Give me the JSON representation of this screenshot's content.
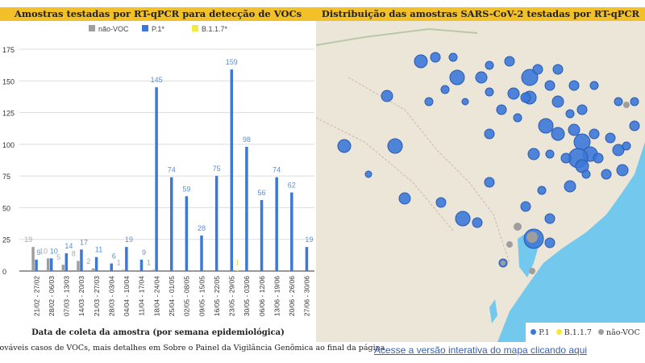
{
  "chart_title": "Amostras testadas por RT-qPCR para detecção de VOCs",
  "map_title": "Distribuição das amostras SARS-CoV-2 testadas por RT-qPCR",
  "note": "rováveis casos de VOCs, mais detalhes em Sobre o Painel da Vigilância Genômica ao final da página",
  "map_link": "Acesse a versão interativa do mapa clicando aqui",
  "map_legend": [
    {
      "label": "P.1",
      "color": "#3c78d8"
    },
    {
      "label": "B.1.1.7",
      "color": "#f4e842"
    },
    {
      "label": "não-VOC",
      "color": "#9e9e9e"
    }
  ],
  "chart_data": {
    "type": "bar",
    "title": "Amostras testadas por RT-qPCR para detecção de VOCs",
    "xlabel": "Data de coleta da amostra (por semana epidemiológica)",
    "ylabel": "",
    "ylim": [
      0,
      175
    ],
    "yticks": [
      0,
      25,
      50,
      75,
      100,
      125,
      150,
      175
    ],
    "grid": true,
    "legend": "top",
    "categories": [
      "21/02 - 27/02",
      "28/02 - 06/03",
      "07/03 - 13/03",
      "14/03 - 20/03",
      "21/03 - 27/03",
      "28/03 - 03/04",
      "04/04 - 10/04",
      "11/04 - 17/04",
      "18/04 - 24/04",
      "25/04 - 01/05",
      "02/05 - 08/05",
      "09/05 - 15/05",
      "16/05 - 22/05",
      "23/05 - 29/05",
      "30/05 - 03/06",
      "06/06 - 12/06",
      "13/06 - 19/06",
      "20/06 - 26/06",
      "27/06 - 30/06"
    ],
    "series": [
      {
        "name": "não-VOC",
        "color": "#9e9e9e",
        "labelColor": "#aaaaaa",
        "values": [
          19,
          10,
          5,
          8,
          2,
          null,
          1,
          null,
          1,
          null,
          null,
          null,
          null,
          null,
          null,
          null,
          null,
          null,
          null
        ]
      },
      {
        "name": "P.1*",
        "color": "#3c78d8",
        "labelColor": "#5b8fd6",
        "values": [
          9,
          10,
          14,
          17,
          11,
          6,
          19,
          9,
          145,
          74,
          59,
          28,
          75,
          159,
          98,
          56,
          74,
          62,
          19
        ]
      },
      {
        "name": "B.1.1.7*",
        "color": "#f4e842",
        "labelColor": "#e8dc50",
        "values": [
          null,
          null,
          null,
          null,
          null,
          null,
          null,
          null,
          null,
          null,
          null,
          null,
          null,
          1,
          null,
          null,
          null,
          null,
          null
        ]
      }
    ]
  }
}
